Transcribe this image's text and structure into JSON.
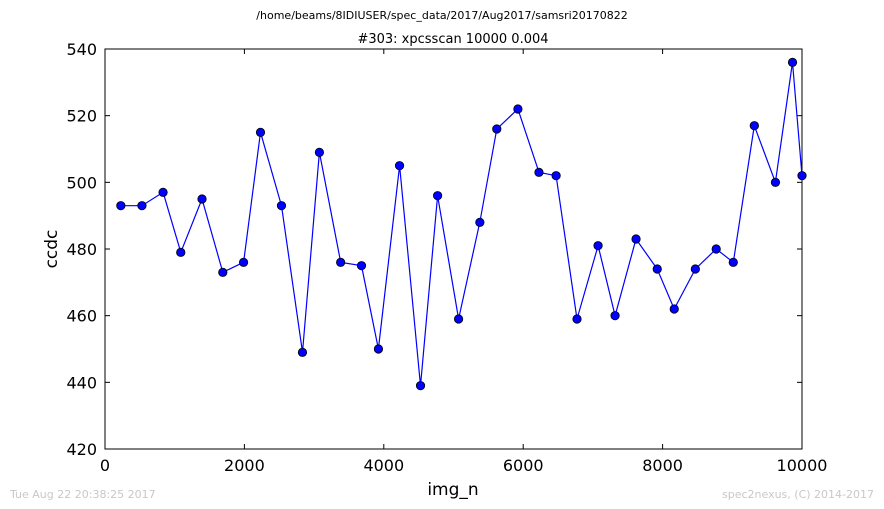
{
  "header": {
    "file_path": "/home/beams/8IDIUSER/spec_data/2017/Aug2017/samsri20170822"
  },
  "footer": {
    "timestamp": "Tue Aug 22 20:38:25 2017",
    "credit": "spec2nexus, (C) 2014-2017"
  },
  "chart_data": {
    "type": "line",
    "title": "#303: xpcsscan 10000 0.004",
    "xlabel": "img_n",
    "ylabel": "ccdc",
    "xlim": [
      0,
      10000
    ],
    "ylim": [
      420,
      540
    ],
    "xticks": [
      0,
      2000,
      4000,
      6000,
      8000,
      10000
    ],
    "yticks": [
      420,
      440,
      460,
      480,
      500,
      520,
      540
    ],
    "grid": false,
    "color": "#0000ff",
    "series": [
      {
        "x": [
          227,
          530,
          833,
          1087,
          1392,
          1690,
          1988,
          2231,
          2532,
          2833,
          3076,
          3381,
          3680,
          3923,
          4226,
          4527,
          4772,
          5073,
          5378,
          5621,
          5924,
          6226,
          6472,
          6772,
          7074,
          7318,
          7619,
          7923,
          8167,
          8470,
          8769,
          9014,
          9316,
          9619,
          9864,
          10000
        ],
        "y": [
          493,
          493,
          497,
          479,
          495,
          473,
          476,
          515,
          493,
          449,
          509,
          476,
          475,
          450,
          505,
          439,
          496,
          459,
          488,
          516,
          522,
          503,
          502,
          459,
          481,
          460,
          483,
          474,
          462,
          474,
          480,
          476,
          517,
          500,
          536,
          502
        ]
      }
    ]
  }
}
